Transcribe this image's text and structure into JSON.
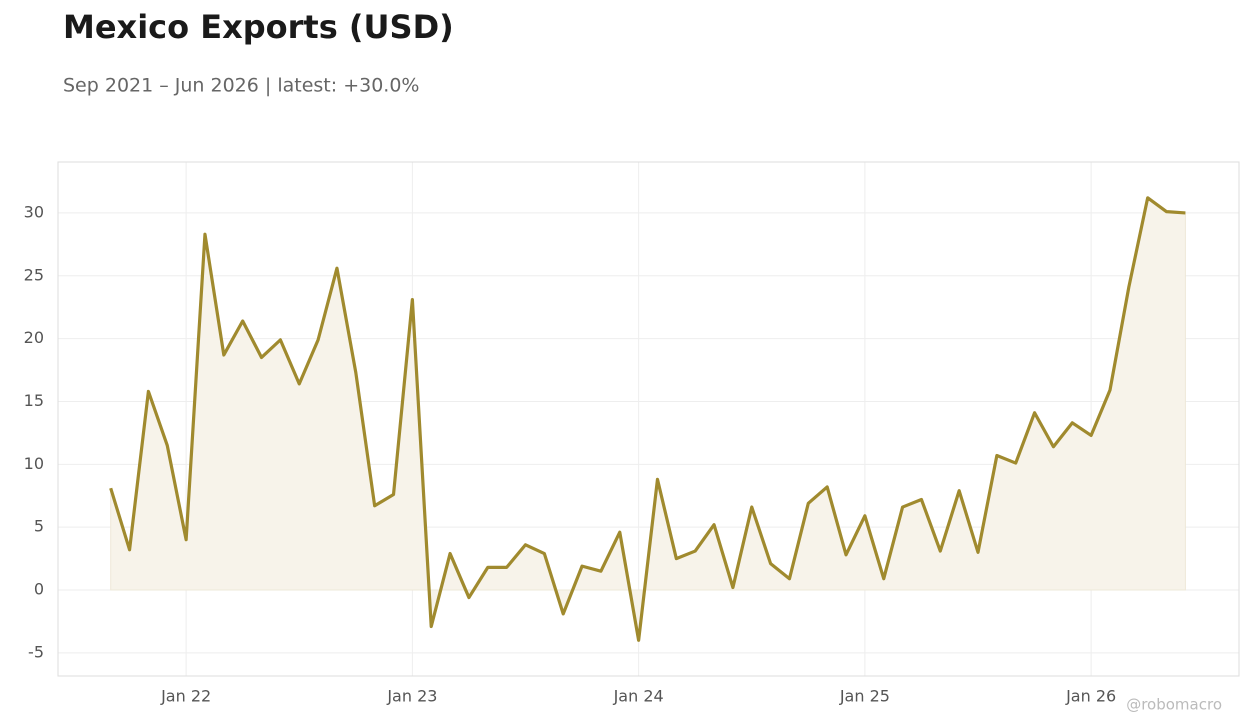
{
  "chart_data": {
    "type": "line",
    "title": "Mexico Exports (USD)",
    "subtitle": "Sep 2021 – Jun 2026 | latest: +30.0%",
    "watermark": "@robomacro",
    "x": [
      "2021-09",
      "2021-10",
      "2021-11",
      "2021-12",
      "2022-01",
      "2022-02",
      "2022-03",
      "2022-04",
      "2022-05",
      "2022-06",
      "2022-07",
      "2022-08",
      "2022-09",
      "2022-10",
      "2022-11",
      "2022-12",
      "2023-01",
      "2023-02",
      "2023-03",
      "2023-04",
      "2023-05",
      "2023-06",
      "2023-07",
      "2023-08",
      "2023-09",
      "2023-10",
      "2023-11",
      "2023-12",
      "2024-01",
      "2024-02",
      "2024-03",
      "2024-04",
      "2024-05",
      "2024-06",
      "2024-07",
      "2024-08",
      "2024-09",
      "2024-10",
      "2024-11",
      "2024-12",
      "2025-01",
      "2025-02",
      "2025-03",
      "2025-04",
      "2025-05",
      "2025-06",
      "2025-07",
      "2025-08",
      "2025-09",
      "2025-10",
      "2025-11",
      "2025-12",
      "2026-01",
      "2026-02",
      "2026-03",
      "2026-04",
      "2026-05",
      "2026-06"
    ],
    "series": [
      {
        "name": "Mexico Exports",
        "color": "#a08a2e",
        "fill": "#f7f3ea",
        "values": [
          8.1,
          3.2,
          15.8,
          11.5,
          4.0,
          28.3,
          18.7,
          21.4,
          18.5,
          19.9,
          16.4,
          19.9,
          25.6,
          17.3,
          6.7,
          7.6,
          23.1,
          -2.9,
          2.9,
          -0.6,
          1.8,
          1.8,
          3.6,
          2.9,
          -1.9,
          1.9,
          1.5,
          4.6,
          -4.0,
          8.8,
          2.5,
          3.1,
          5.2,
          0.2,
          6.6,
          2.1,
          0.9,
          6.9,
          8.2,
          2.8,
          5.9,
          0.9,
          6.6,
          7.2,
          3.1,
          7.9,
          3.0,
          10.7,
          10.1,
          14.1,
          11.4,
          13.3,
          12.3,
          15.9,
          24.1,
          31.2,
          30.1,
          30.0
        ]
      }
    ],
    "ylim": [
      -6.84,
      34.05
    ],
    "yticks": [
      -5,
      0,
      5,
      10,
      15,
      20,
      25,
      30
    ],
    "xticks": [
      {
        "value": "2022-01",
        "label": "Jan 22"
      },
      {
        "value": "2023-01",
        "label": "Jan 23"
      },
      {
        "value": "2024-01",
        "label": "Jan 24"
      },
      {
        "value": "2025-01",
        "label": "Jan 25"
      },
      {
        "value": "2026-01",
        "label": "Jan 26"
      }
    ],
    "grid": true
  }
}
